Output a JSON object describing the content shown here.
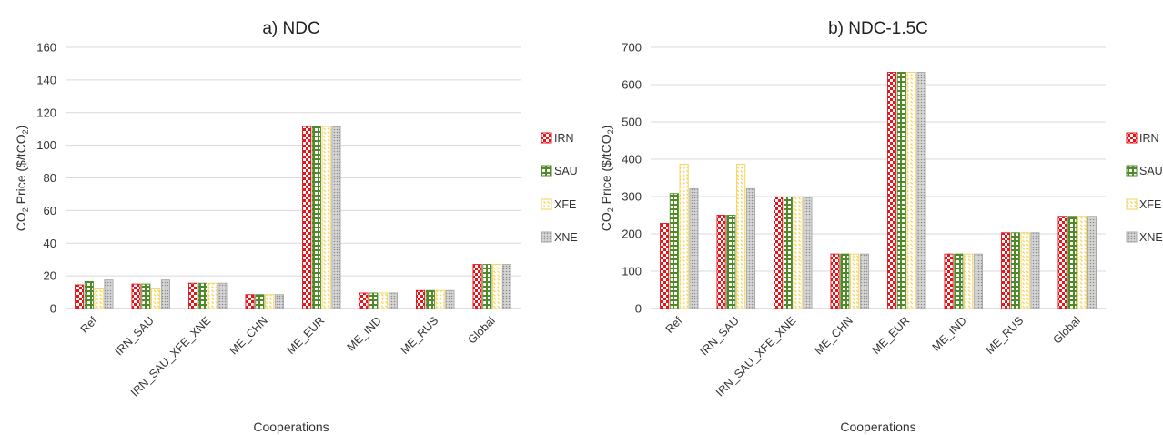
{
  "chart_data": [
    {
      "type": "bar",
      "title": "a) NDC",
      "xlabel": "Cooperations",
      "ylabel": {
        "prefix": "CO",
        "sub": "2",
        "mid": " Price ($/tCO",
        "sub2": "2",
        "suffix": ")"
      },
      "ylim": [
        0,
        160
      ],
      "yticks": [
        "0",
        "20",
        "40",
        "60",
        "80",
        "100",
        "120",
        "140",
        "160"
      ],
      "grid": true,
      "legend": "right",
      "categories": [
        "Ref",
        "IRN_SAU",
        "IRN_SAU_XFE_XNE",
        "ME_CHN",
        "ME_EUR",
        "ME_IND",
        "ME_RUS",
        "Global"
      ],
      "series": [
        {
          "name": "IRN",
          "values": [
            14.5,
            15.0,
            15.5,
            8.5,
            111.5,
            9.5,
            11.0,
            27.0
          ]
        },
        {
          "name": "SAU",
          "values": [
            16.5,
            15.0,
            15.5,
            8.5,
            111.5,
            9.5,
            11.0,
            27.0
          ]
        },
        {
          "name": "XFE",
          "values": [
            12.0,
            12.0,
            15.5,
            8.5,
            111.5,
            9.5,
            11.0,
            27.0
          ]
        },
        {
          "name": "XNE",
          "values": [
            17.5,
            17.5,
            15.5,
            8.5,
            111.5,
            9.5,
            11.0,
            27.0
          ]
        }
      ]
    },
    {
      "type": "bar",
      "title": "b) NDC-1.5C",
      "xlabel": "Cooperations",
      "ylabel": {
        "prefix": "CO",
        "sub": "2",
        "mid": " Price ($/tCO",
        "sub2": "2",
        "suffix": ")"
      },
      "ylim": [
        0,
        700
      ],
      "yticks": [
        "0",
        "100",
        "200",
        "300",
        "400",
        "500",
        "600",
        "700"
      ],
      "grid": true,
      "legend": "right",
      "categories": [
        "Ref",
        "IRN_SAU",
        "IRN_SAU_XFE_XNE",
        "ME_CHN",
        "ME_EUR",
        "ME_IND",
        "ME_RUS",
        "Global"
      ],
      "series": [
        {
          "name": "IRN",
          "values": [
            228,
            250,
            299,
            146,
            633,
            146,
            203,
            247
          ]
        },
        {
          "name": "SAU",
          "values": [
            308,
            250,
            299,
            146,
            633,
            146,
            203,
            247
          ]
        },
        {
          "name": "XFE",
          "values": [
            387,
            387,
            299,
            146,
            633,
            146,
            203,
            247
          ]
        },
        {
          "name": "XNE",
          "values": [
            321,
            321,
            299,
            146,
            633,
            146,
            203,
            247
          ]
        }
      ]
    }
  ],
  "colors": {
    "IRN": "#e8141b",
    "SAU": "#4e8a2a",
    "XFE": "#f5d255",
    "XNE": "#a8a8a8",
    "grid": "#d9d9d9",
    "axis": "#bfbfbf"
  },
  "patterns": {
    "IRN": "checkerboard",
    "SAU": "grid",
    "XFE": "diagonal-dash",
    "XNE": "dots"
  }
}
